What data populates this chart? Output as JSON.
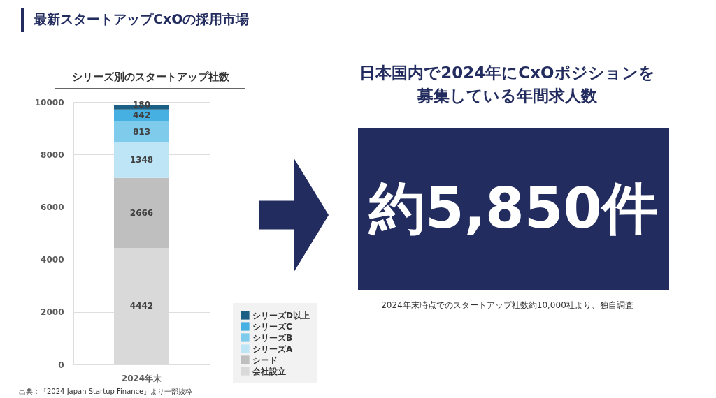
{
  "chart_data": [
    {
      "type": "bar",
      "title": "最新スタートアップCxOの採用市場",
      "subtitle": "シリーズ別のスタートアップ社数",
      "categories": [
        "2024年末"
      ],
      "stacked": true,
      "series": [
        {
          "name": "会社設立",
          "color": "#d9d9d9",
          "values": [
            4442
          ]
        },
        {
          "name": "シード",
          "color": "#bfbfbf",
          "values": [
            2666
          ]
        },
        {
          "name": "シリーズA",
          "color": "#bde5f5",
          "values": [
            1348
          ]
        },
        {
          "name": "シリーズB",
          "color": "#7fcbec",
          "values": [
            813
          ]
        },
        {
          "name": "シリーズC",
          "color": "#45b0e1",
          "values": [
            442
          ]
        },
        {
          "name": "シリーズD以上",
          "color": "#1b5f85",
          "values": [
            180
          ]
        }
      ],
      "ylim": [
        0,
        10000
      ],
      "yticks": [
        0,
        2000,
        4000,
        6000,
        8000,
        10000
      ],
      "grid": "y",
      "legend": "bottom right",
      "data_labels": true,
      "annotations": [
        "出典：「2024 Japan Startup Finance」より一部抜粋"
      ]
    },
    {
      "type": "other",
      "title": "日本国内で2024年にCxOポジションを募集している年間求人数",
      "color": "#232c5e",
      "annotations": [
        "約5,850件",
        "2024年末時点でのスタートアップ社数約10,000社より、独自調査"
      ]
    }
  ]
}
